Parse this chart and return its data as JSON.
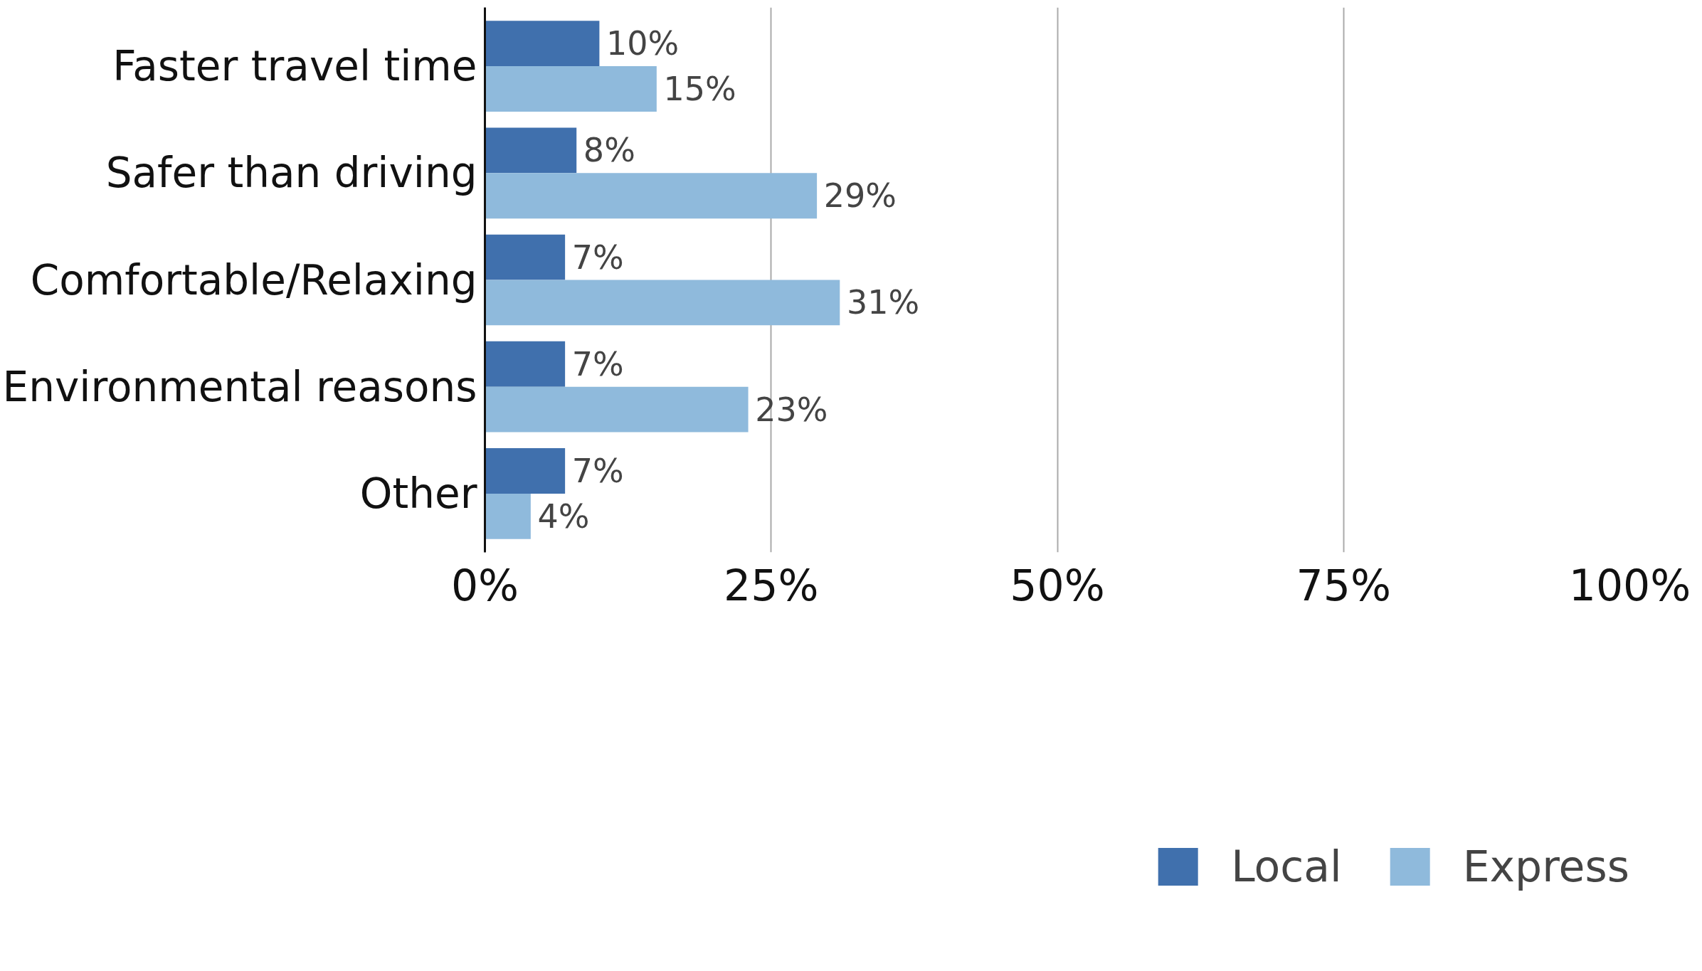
{
  "chart_data": {
    "type": "bar",
    "orientation": "horizontal",
    "categories": [
      "Faster travel time",
      "Safer than driving",
      "Comfortable/Relaxing",
      "Environmental reasons",
      "Other"
    ],
    "series": [
      {
        "name": "Local",
        "color": "#4070ad",
        "values": [
          10,
          8,
          7,
          7,
          7
        ],
        "value_labels": [
          "10%",
          "8%",
          "7%",
          "7%",
          "7%"
        ]
      },
      {
        "name": "Express",
        "color": "#8fbadc",
        "values": [
          15,
          29,
          31,
          23,
          4
        ],
        "value_labels": [
          "15%",
          "29%",
          "31%",
          "23%",
          "4%"
        ]
      }
    ],
    "xlim": [
      0,
      100
    ],
    "xticks": [
      {
        "value": 0,
        "label": "0%"
      },
      {
        "value": 25,
        "label": "25%"
      },
      {
        "value": 50,
        "label": "50%"
      },
      {
        "value": 75,
        "label": "75%"
      },
      {
        "value": 100,
        "label": "100%"
      }
    ],
    "grid": "x",
    "legend": "bottom right"
  }
}
